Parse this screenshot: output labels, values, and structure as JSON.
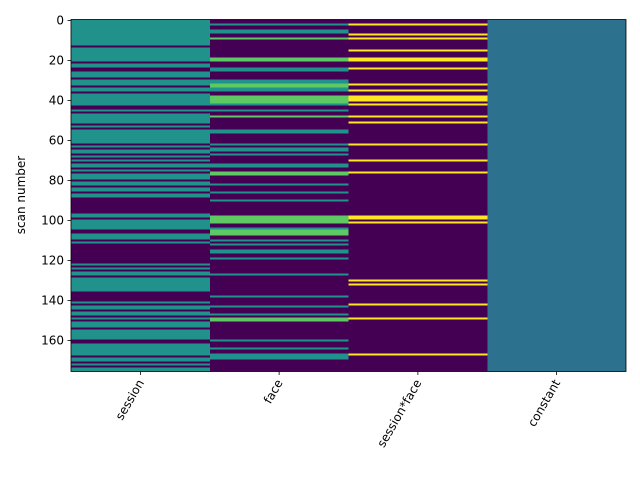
{
  "chart_data": {
    "type": "heatmap",
    "title": "",
    "xlabel": "",
    "ylabel": "scan number",
    "columns": [
      "session",
      "face",
      "session*face",
      "constant"
    ],
    "n_rows": 176,
    "y_ticks": [
      0,
      20,
      40,
      60,
      80,
      100,
      120,
      140,
      160
    ],
    "colormap": "viridis",
    "colors": {
      "low": "#440154",
      "session_high": "#21918c",
      "face_high": "#5ec962",
      "interaction_high": "#fde725",
      "constant": "#2c728e"
    },
    "column_values": {
      "session": "binary, 0 or 1",
      "face": "0 to 3 (levels shown as purple, teal, light green)",
      "session*face": "0 to 3 (purple with yellow stripes)",
      "constant": "1 for all scans"
    },
    "segments": {
      "session": [
        [
          0,
          13
        ],
        [
          14,
          21
        ],
        [
          22,
          24
        ],
        [
          26,
          29
        ],
        [
          30,
          33
        ],
        [
          34,
          36
        ],
        [
          37,
          43
        ],
        [
          45,
          46
        ],
        [
          47,
          52
        ],
        [
          53,
          54
        ],
        [
          55,
          62
        ],
        [
          63,
          64
        ],
        [
          65,
          67
        ],
        [
          68,
          69
        ],
        [
          70,
          71
        ],
        [
          72,
          74
        ],
        [
          75,
          76
        ],
        [
          77,
          80
        ],
        [
          81,
          83
        ],
        [
          84,
          86
        ],
        [
          87,
          89
        ],
        [
          97,
          99
        ],
        [
          100,
          105
        ],
        [
          107,
          110
        ],
        [
          111,
          112
        ],
        [
          122,
          123
        ],
        [
          124,
          125
        ],
        [
          126,
          128
        ],
        [
          129,
          136
        ],
        [
          141,
          142
        ],
        [
          143,
          145
        ],
        [
          146,
          148
        ],
        [
          149,
          150
        ],
        [
          151,
          154
        ],
        [
          155,
          160
        ],
        [
          162,
          168
        ],
        [
          169,
          171
        ],
        [
          172,
          173
        ],
        [
          174,
          176
        ]
      ],
      "face": [
        {
          "v": 1,
          "ranges": [
            [
              2,
              3
            ],
            [
              5,
              7
            ],
            [
              24,
              26
            ],
            [
              30,
              32
            ],
            [
              34,
              36
            ],
            [
              42,
              43
            ],
            [
              45,
              46
            ],
            [
              55,
              57
            ],
            [
              62,
              63
            ],
            [
              64,
              66
            ],
            [
              67,
              68
            ],
            [
              72,
              74
            ],
            [
              82,
              83
            ],
            [
              86,
              87
            ],
            [
              90,
              91
            ],
            [
              104,
              105
            ],
            [
              110,
              111
            ],
            [
              112,
              113
            ],
            [
              115,
              117
            ],
            [
              119,
              120
            ],
            [
              127,
              128
            ],
            [
              138,
              139
            ],
            [
              143,
              144
            ],
            [
              147,
              148
            ],
            [
              160,
              161
            ],
            [
              164,
              165
            ],
            [
              167,
              169
            ],
            [
              169,
              170
            ]
          ]
        },
        {
          "v": 2,
          "ranges": [
            [
              9,
              10
            ],
            [
              19,
              21
            ],
            [
              32,
              34
            ],
            [
              38,
              42
            ],
            [
              48,
              49
            ],
            [
              76,
              78
            ],
            [
              98,
              102
            ],
            [
              105,
              108
            ],
            [
              149,
              151
            ]
          ]
        },
        {
          "v": 3,
          "ranges": []
        }
      ],
      "session*face": [
        {
          "v": 3,
          "ranges": [
            [
              2,
              3
            ],
            [
              7,
              8
            ],
            [
              9,
              10
            ],
            [
              15,
              16
            ],
            [
              19,
              21
            ],
            [
              24,
              25
            ],
            [
              32,
              33
            ],
            [
              35,
              36
            ],
            [
              38,
              41
            ],
            [
              42,
              43
            ],
            [
              48,
              49
            ],
            [
              51,
              52
            ],
            [
              62,
              63
            ],
            [
              70,
              71
            ],
            [
              76,
              77
            ],
            [
              98,
              100
            ],
            [
              101,
              102
            ],
            [
              130,
              131
            ],
            [
              132,
              133
            ],
            [
              142,
              143
            ],
            [
              149,
              150
            ],
            [
              167,
              168
            ]
          ]
        }
      ]
    }
  }
}
